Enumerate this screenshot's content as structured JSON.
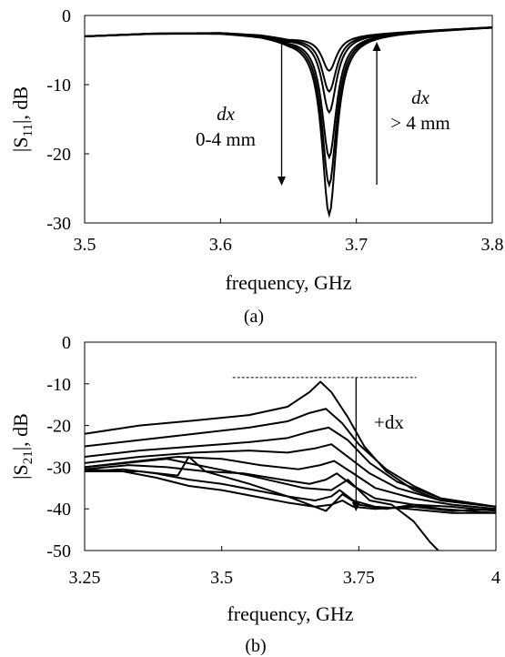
{
  "chart_data": [
    {
      "type": "line",
      "panel_label": "(a)",
      "xlabel": "frequency, GHz",
      "ylabel": {
        "pre": "|S",
        "sub": "11",
        "post": "|, dB"
      },
      "xlim": [
        3.5,
        3.8
      ],
      "ylim": [
        -30,
        0
      ],
      "x_ticks": [
        "3.5",
        "3.6",
        "3.7",
        "3.8"
      ],
      "y_ticks": [
        "0",
        "-10",
        "-20",
        "-30"
      ],
      "grid": false,
      "annotations": [
        {
          "line1": "dx",
          "line2": "0-4 mm",
          "arrow": "down"
        },
        {
          "line1": "dx",
          "line2": "> 4 mm",
          "arrow": "up"
        }
      ],
      "resonance_GHz": 3.68,
      "baseline": {
        "x": [
          3.5,
          3.55,
          3.6,
          3.63,
          3.65,
          3.75,
          3.8
        ],
        "y": [
          -3.0,
          -2.6,
          -2.5,
          -2.8,
          -3.3,
          -2.2,
          -1.7
        ]
      },
      "series": [
        {
          "min_dB": -8
        },
        {
          "min_dB": -11
        },
        {
          "min_dB": -14
        },
        {
          "min_dB": -20.5
        },
        {
          "min_dB": -24.5
        },
        {
          "min_dB": -28.8
        }
      ]
    },
    {
      "type": "line",
      "panel_label": "(b)",
      "xlabel": "frequency, GHz",
      "ylabel": {
        "pre": "|S",
        "sub": "21",
        "post": "|, dB"
      },
      "xlim": [
        3.25,
        4.0
      ],
      "ylim": [
        -50,
        0
      ],
      "x_ticks": [
        "3.25",
        "3.5",
        "3.75",
        "4"
      ],
      "y_ticks": [
        "0",
        "-10",
        "-20",
        "-30",
        "-40",
        "-50"
      ],
      "grid": false,
      "annotations": [
        {
          "text": "+dx",
          "arrow": "down"
        }
      ],
      "reference_level_dB": -8.5,
      "series": [
        {
          "x": [
            3.25,
            3.35,
            3.45,
            3.55,
            3.62,
            3.66,
            3.68,
            3.7,
            3.73,
            3.76,
            3.8,
            3.85,
            3.9,
            4.0
          ],
          "y": [
            -22,
            -20,
            -18.8,
            -17.5,
            -15.5,
            -12,
            -9.5,
            -12,
            -18,
            -25,
            -31,
            -35.5,
            -38,
            -39.5
          ]
        },
        {
          "x": [
            3.25,
            3.35,
            3.45,
            3.55,
            3.62,
            3.66,
            3.69,
            3.72,
            3.75,
            3.8,
            3.85,
            3.9,
            4.0
          ],
          "y": [
            -25,
            -23.5,
            -22,
            -20.5,
            -19,
            -17,
            -16,
            -19.5,
            -24.5,
            -30.5,
            -34.5,
            -37.5,
            -39.5
          ]
        },
        {
          "x": [
            3.25,
            3.35,
            3.45,
            3.55,
            3.62,
            3.66,
            3.695,
            3.73,
            3.77,
            3.82,
            3.9,
            4.0
          ],
          "y": [
            -27.5,
            -26,
            -25,
            -24,
            -23,
            -21.5,
            -20.5,
            -23.5,
            -29,
            -33.5,
            -37.5,
            -39.5
          ]
        },
        {
          "x": [
            3.25,
            3.35,
            3.45,
            3.55,
            3.62,
            3.67,
            3.7,
            3.73,
            3.77,
            3.82,
            3.9,
            4.0
          ],
          "y": [
            -29,
            -27.5,
            -26.5,
            -26,
            -26.5,
            -25.5,
            -24.5,
            -27.5,
            -31.5,
            -35,
            -38,
            -39.5
          ]
        },
        {
          "x": [
            3.25,
            3.35,
            3.42,
            3.5,
            3.57,
            3.64,
            3.68,
            3.705,
            3.74,
            3.78,
            3.85,
            3.92,
            4.0
          ],
          "y": [
            -30,
            -28.5,
            -27.5,
            -28,
            -29.5,
            -30.5,
            -29.5,
            -28.5,
            -31.5,
            -35,
            -37.5,
            -39,
            -40
          ]
        },
        {
          "x": [
            3.25,
            3.33,
            3.4,
            3.47,
            3.54,
            3.61,
            3.66,
            3.69,
            3.71,
            3.74,
            3.78,
            3.85,
            3.92,
            4.0
          ],
          "y": [
            -30.5,
            -29.5,
            -30,
            -31,
            -31.5,
            -33,
            -34,
            -33,
            -31.5,
            -34.5,
            -37.5,
            -39,
            -39.5,
            -40.5
          ]
        },
        {
          "x": [
            3.25,
            3.32,
            3.38,
            3.44,
            3.5,
            3.56,
            3.62,
            3.67,
            3.7,
            3.715,
            3.74,
            3.78,
            3.84,
            3.92,
            4.0
          ],
          "y": [
            -31,
            -30.5,
            -31.5,
            -33,
            -34,
            -35.5,
            -37,
            -38,
            -37,
            -35.5,
            -38,
            -39.5,
            -40,
            -41,
            -41
          ]
        },
        {
          "x": [
            3.25,
            3.32,
            3.38,
            3.44,
            3.5,
            3.56,
            3.62,
            3.67,
            3.7,
            3.72,
            3.74,
            3.78,
            3.85,
            3.92,
            4.0
          ],
          "y": [
            -30.5,
            -31,
            -32.5,
            -34.5,
            -35.5,
            -37,
            -38.5,
            -39.5,
            -39,
            -38,
            -39.5,
            -40,
            -39.5,
            -40.5,
            -40
          ]
        },
        {
          "x": [
            3.25,
            3.35,
            3.42,
            3.44,
            3.47,
            3.55,
            3.62,
            3.67,
            3.69,
            3.72,
            3.75,
            3.8,
            3.85,
            3.9,
            3.95,
            4.0
          ],
          "y": [
            -31,
            -31,
            -32,
            -27.5,
            -31,
            -34,
            -37,
            -39.5,
            -40.5,
            -36.5,
            -39,
            -40,
            -39,
            -40,
            -40.5,
            -41
          ]
        },
        {
          "x": [
            3.25,
            3.4,
            3.55,
            3.65,
            3.7,
            3.73,
            3.77,
            3.81,
            3.85,
            3.88,
            3.895
          ],
          "y": [
            -30,
            -28,
            -32,
            -35,
            -35.5,
            -33,
            -38,
            -39,
            -43,
            -48,
            -50
          ]
        }
      ]
    }
  ]
}
